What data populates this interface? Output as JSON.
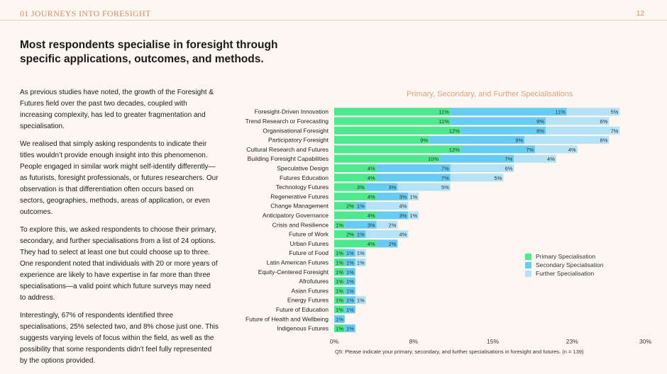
{
  "header": {
    "section_title": "01 JOURNEYS INTO FORESIGHT",
    "page_number": "12"
  },
  "headline": "Most respondents specialise in foresight through specific applications, outcomes, and methods.",
  "body": {
    "p1": "As previous studies have noted, the growth of the Foresight & Futures field over the past two decades, coupled with increasing complexity, has led to greater fragmentation and specialisation.",
    "p2": "We realised that simply asking respondents to indicate their titles wouldn’t provide enough insight into this phenomenon. People engaged in similar work might self-identify differently—as futurists, foresight professionals, or futures researchers. Our observation is that differentiation often occurs based on sectors, geographies, methods, areas of application, or even outcomes.",
    "p3": "To explore this, we asked respondents to choose their primary, secondary, and further specialisations from a list of 24 options. They had to select at least one but could choose up to three. One respondent noted that individuals with 20 or more years of experience are likely to have expertise in far more than three specialisations—a valid point which future surveys may need to address.",
    "p4": "Interestingly, 67% of respondents identified three specialisations, 25% selected two, and 8% chose just one. This suggests varying levels of focus within the field, as well as the possibility that some respondents didn’t feel fully represented by the options provided."
  },
  "chart_data": {
    "type": "bar",
    "orientation": "horizontal",
    "stacked": true,
    "title": "Primary, Secondary, and Further Specialisations",
    "categories": [
      "Foresight-Driven Innovation",
      "Trend Research or Forecasting",
      "Organisational Foresight",
      "Participatory Foresight",
      "Cultural Research and Futures",
      "Building Foresight Capabilities",
      "Speculative Design",
      "Futures Education",
      "Technology Futures",
      "Regenerative Futures",
      "Change Management",
      "Anticipatory Governance",
      "Crisis and Resilience",
      "Future of Work",
      "Urban Futures",
      "Future of Food",
      "Latin American Futures",
      "Equity-Centered Foresight",
      "Afrofutures",
      "Asian Futures",
      "Energy Futures",
      "Future of Education",
      "Future of Health and Wellbeing",
      "Indigenous Futures"
    ],
    "series": [
      {
        "name": "Primary Specialisation",
        "color": "#4ee88f",
        "values": [
          11,
          11,
          12,
          9,
          12,
          10,
          4,
          4,
          3,
          4,
          2,
          4,
          1,
          2,
          4,
          1,
          1,
          1,
          1,
          1,
          1,
          1,
          0,
          1
        ]
      },
      {
        "name": "Secondary Specialisation",
        "color": "#67ccf2",
        "values": [
          11,
          9,
          8,
          9,
          7,
          7,
          7,
          7,
          3,
          3,
          1,
          3,
          3,
          1,
          2,
          1,
          1,
          1,
          1,
          1,
          1,
          1,
          1,
          1
        ]
      },
      {
        "name": "Further Specialisation",
        "color": "#b5e2f5",
        "values": [
          5,
          6,
          7,
          8,
          4,
          4,
          6,
          5,
          5,
          1,
          4,
          1,
          2,
          4,
          0,
          1,
          1,
          0,
          0,
          0,
          1,
          0,
          0,
          0
        ]
      }
    ],
    "labels": [
      [
        "11%",
        "11%",
        "5%"
      ],
      [
        "11%",
        "9%",
        "6%"
      ],
      [
        "12%",
        "8%",
        "7%"
      ],
      [
        "9%",
        "9%",
        "8%"
      ],
      [
        "12%",
        "7%",
        "4%"
      ],
      [
        "10%",
        "7%",
        "4%"
      ],
      [
        "4%",
        "7%",
        "6%"
      ],
      [
        "4%",
        "7%",
        "5%"
      ],
      [
        "3%",
        "3%",
        "5%"
      ],
      [
        "4%",
        "3%",
        "1%"
      ],
      [
        "2%",
        "1%",
        "4%"
      ],
      [
        "4%",
        "3%",
        "1%"
      ],
      [
        "1%",
        "3%",
        "2%"
      ],
      [
        "2%",
        "1%",
        "4%"
      ],
      [
        "4%",
        "2%",
        ""
      ],
      [
        "1%",
        "1%",
        "1%"
      ],
      [
        "1%",
        "1%",
        "1%"
      ],
      [
        "1%",
        "1%",
        ""
      ],
      [
        "1%",
        "1%",
        ""
      ],
      [
        "1%",
        "1%",
        ""
      ],
      [
        "1%",
        "1%",
        "1%"
      ],
      [
        "1%",
        "1%",
        ""
      ],
      [
        "",
        "1%",
        ""
      ],
      [
        "1%",
        "1%",
        ""
      ]
    ],
    "xticks": [
      "0%",
      "8%",
      "15%",
      "23%",
      "30%"
    ],
    "xlim": [
      0,
      30
    ],
    "grid": false,
    "legend_position": "right"
  },
  "footnote": "Q5: Please indicate your primary, secondary, and further specialisations in foresight and futures. (n = 139)"
}
